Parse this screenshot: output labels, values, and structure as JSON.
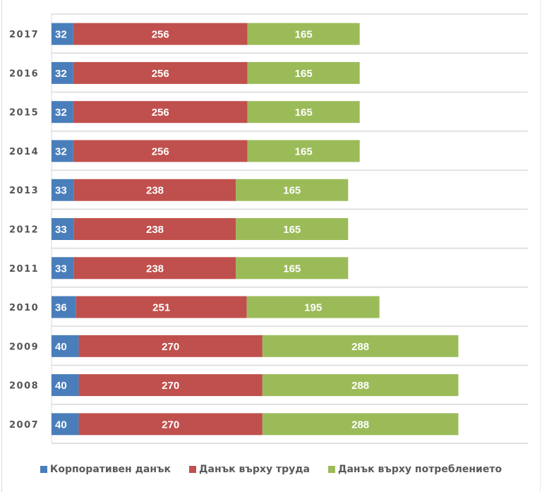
{
  "chart_data": {
    "type": "bar",
    "orientation": "horizontal",
    "stacked": true,
    "title": "",
    "xlabel": "",
    "ylabel": "",
    "categories": [
      "2017",
      "2016",
      "2015",
      "2014",
      "2013",
      "2012",
      "2011",
      "2010",
      "2009",
      "2008",
      "2007"
    ],
    "series": [
      {
        "name": "Корпоративен данък",
        "color": "#4a7ebb",
        "values": [
          32,
          32,
          32,
          32,
          33,
          33,
          33,
          36,
          40,
          40,
          40
        ]
      },
      {
        "name": "Данък върху труда",
        "color": "#c0504d",
        "values": [
          256,
          256,
          256,
          256,
          238,
          238,
          238,
          251,
          270,
          270,
          270
        ]
      },
      {
        "name": "Данък върху потреблението",
        "color": "#9bbb59",
        "values": [
          165,
          165,
          165,
          165,
          165,
          165,
          165,
          195,
          288,
          288,
          288
        ]
      }
    ],
    "xlim": [
      0,
      700
    ],
    "grid": true,
    "data_labels": true,
    "legend_position": "bottom"
  }
}
